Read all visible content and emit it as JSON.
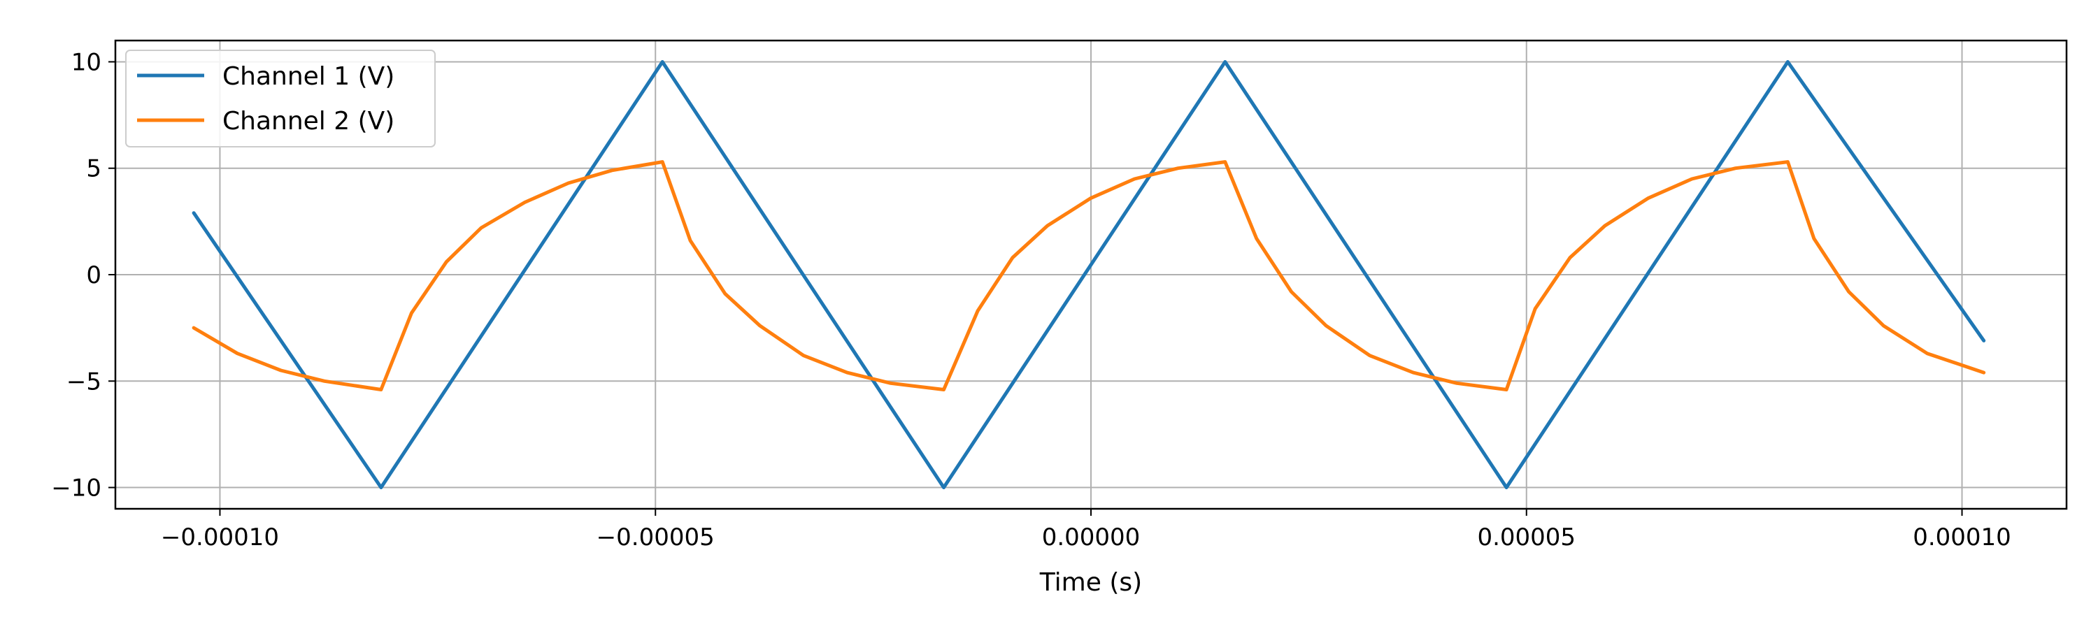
{
  "chart_data": {
    "type": "line",
    "title": "",
    "xlabel": "Time (s)",
    "ylabel": "",
    "xlim": [
      -0.000112,
      0.000112
    ],
    "ylim": [
      -11.0,
      11.0
    ],
    "x_ticks": [
      {
        "value": -0.0001,
        "label": "−0.00010"
      },
      {
        "value": -5e-05,
        "label": "−0.00005"
      },
      {
        "value": 0.0,
        "label": "0.00000"
      },
      {
        "value": 5e-05,
        "label": "0.00005"
      },
      {
        "value": 0.0001,
        "label": "0.00010"
      }
    ],
    "y_ticks": [
      {
        "value": 10,
        "label": "10"
      },
      {
        "value": 5,
        "label": "5"
      },
      {
        "value": 0,
        "label": "0"
      },
      {
        "value": -5,
        "label": "−5"
      },
      {
        "value": -10,
        "label": "−10"
      }
    ],
    "grid": true,
    "legend_position": "upper-left",
    "series": [
      {
        "name": "Channel 1 (V)",
        "color": "#1f77b4",
        "x": [
          -0.000103,
          -8.15e-05,
          -4.92e-05,
          -1.69e-05,
          1.54e-05,
          4.77e-05,
          8e-05,
          0.0001025
        ],
        "y": [
          2.9,
          -10.0,
          10.0,
          -10.0,
          10.0,
          -10.0,
          10.0,
          -3.1
        ]
      },
      {
        "name": "Channel 2 (V)",
        "color": "#ff7f0e",
        "x": [
          -0.000103,
          -9.8e-05,
          -9.3e-05,
          -8.8e-05,
          -8.15e-05,
          -7.8e-05,
          -7.4e-05,
          -7e-05,
          -6.5e-05,
          -6e-05,
          -5.5e-05,
          -4.92e-05,
          -4.6e-05,
          -4.2e-05,
          -3.8e-05,
          -3.3e-05,
          -2.8e-05,
          -2.3e-05,
          -1.69e-05,
          -1.3e-05,
          -9e-06,
          -5e-06,
          0.0,
          5e-06,
          1e-05,
          1.54e-05,
          1.9e-05,
          2.3e-05,
          2.7e-05,
          3.2e-05,
          3.7e-05,
          4.2e-05,
          4.77e-05,
          5.1e-05,
          5.5e-05,
          5.9e-05,
          6.4e-05,
          6.9e-05,
          7.4e-05,
          8e-05,
          8.3e-05,
          8.7e-05,
          9.1e-05,
          9.6e-05,
          0.0001025
        ],
        "y": [
          -2.5,
          -3.7,
          -4.5,
          -5.0,
          -5.4,
          -1.8,
          0.6,
          2.2,
          3.4,
          4.3,
          4.9,
          5.3,
          1.6,
          -0.9,
          -2.4,
          -3.8,
          -4.6,
          -5.1,
          -5.4,
          -1.7,
          0.8,
          2.3,
          3.6,
          4.5,
          5.0,
          5.3,
          1.7,
          -0.8,
          -2.4,
          -3.8,
          -4.6,
          -5.1,
          -5.4,
          -1.6,
          0.8,
          2.3,
          3.6,
          4.5,
          5.0,
          5.3,
          1.7,
          -0.8,
          -2.4,
          -3.7,
          -4.6
        ]
      }
    ]
  }
}
